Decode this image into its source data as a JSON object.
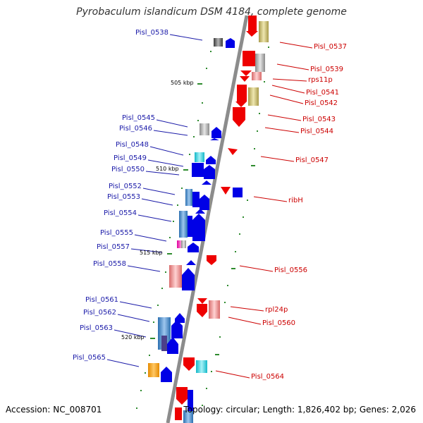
{
  "title": "Pyrobaculum islandicum DSM 4184, complete genome",
  "footer": {
    "accession": "Accession: NC_008701",
    "topology": "Topology: circular; Length: 1,826,402 bp; Genes: 2,026"
  },
  "scale_labels": [
    "505 kbp",
    "510 kbp",
    "515 kbp",
    "520 kbp"
  ],
  "reverse_strand_genes": [
    "Pisl_0538",
    "Pisl_0545",
    "Pisl_0546",
    "Pisl_0548",
    "Pisl_0549",
    "Pisl_0550",
    "Pisl_0552",
    "Pisl_0553",
    "Pisl_0554",
    "Pisl_0555",
    "Pisl_0557",
    "Pisl_0558",
    "Pisl_0561",
    "Pisl_0562",
    "Pisl_0563",
    "Pisl_0565"
  ],
  "forward_strand_genes": [
    "Pisl_0537",
    "Pisl_0539",
    "rps11p",
    "Pisl_0541",
    "Pisl_0542",
    "Pisl_0543",
    "Pisl_0544",
    "Pisl_0547",
    "ribH",
    "Pisl_0556",
    "rpl24p",
    "Pisl_0560",
    "Pisl_0564"
  ],
  "colors": {
    "reverse_label": "#1a1aa8",
    "forward_label": "#cc0000",
    "reverse_gene": "#0000e6",
    "forward_gene": "#ee0000",
    "backbone": "#8c8c8c",
    "tick": "#2e8b2e"
  }
}
